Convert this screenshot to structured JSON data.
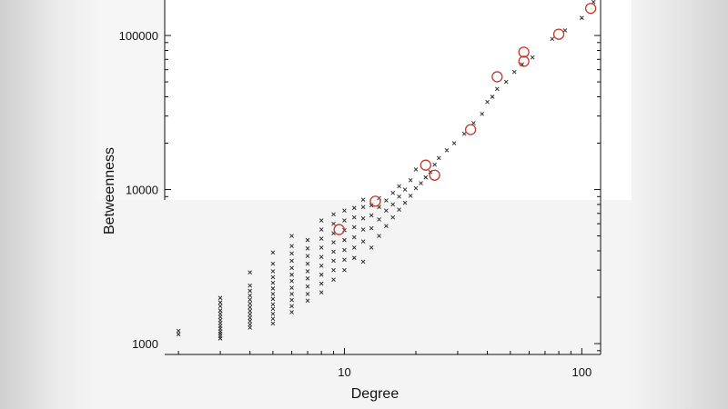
{
  "chart_data": {
    "type": "scatter",
    "title": "",
    "xlabel": "Degree",
    "ylabel": "Betweenness",
    "xscale": "log",
    "yscale": "log",
    "xlim": [
      1.75,
      120
    ],
    "ylim": [
      850,
      170000
    ],
    "x_ticks": [
      10,
      100
    ],
    "x_tick_labels": [
      "10",
      "100"
    ],
    "y_ticks": [
      1000,
      10000,
      100000
    ],
    "y_tick_labels": [
      "1000",
      "10000",
      "100000"
    ],
    "grid": false,
    "legend": "none",
    "series": [
      {
        "marker": "x",
        "color": "#222222",
        "points": [
          [
            2,
            1150
          ],
          [
            2,
            1210
          ],
          [
            3,
            1080
          ],
          [
            3,
            1120
          ],
          [
            3,
            1160
          ],
          [
            3,
            1200
          ],
          [
            3,
            1250
          ],
          [
            3,
            1300
          ],
          [
            3,
            1360
          ],
          [
            3,
            1420
          ],
          [
            3,
            1490
          ],
          [
            3,
            1560
          ],
          [
            3,
            1640
          ],
          [
            3,
            1750
          ],
          [
            3,
            1850
          ],
          [
            3,
            1980
          ],
          [
            4,
            1270
          ],
          [
            4,
            1330
          ],
          [
            4,
            1400
          ],
          [
            4,
            1470
          ],
          [
            4,
            1550
          ],
          [
            4,
            1630
          ],
          [
            4,
            1720
          ],
          [
            4,
            1820
          ],
          [
            4,
            1930
          ],
          [
            4,
            2050
          ],
          [
            4,
            2200
          ],
          [
            4,
            2380
          ],
          [
            4,
            2900
          ],
          [
            5,
            1350
          ],
          [
            5,
            1450
          ],
          [
            5,
            1560
          ],
          [
            5,
            1680
          ],
          [
            5,
            1800
          ],
          [
            5,
            1950
          ],
          [
            5,
            2100
          ],
          [
            5,
            2280
          ],
          [
            5,
            2480
          ],
          [
            5,
            2700
          ],
          [
            5,
            2950
          ],
          [
            5,
            3300
          ],
          [
            5,
            3900
          ],
          [
            6,
            1600
          ],
          [
            6,
            1750
          ],
          [
            6,
            1920
          ],
          [
            6,
            2100
          ],
          [
            6,
            2300
          ],
          [
            6,
            2550
          ],
          [
            6,
            2800
          ],
          [
            6,
            3100
          ],
          [
            6,
            3450
          ],
          [
            6,
            3850
          ],
          [
            6,
            4300
          ],
          [
            6,
            5000
          ],
          [
            7,
            1900
          ],
          [
            7,
            2100
          ],
          [
            7,
            2350
          ],
          [
            7,
            2650
          ],
          [
            7,
            2950
          ],
          [
            7,
            3300
          ],
          [
            7,
            3700
          ],
          [
            7,
            4150
          ],
          [
            7,
            4700
          ],
          [
            8,
            2150
          ],
          [
            8,
            2450
          ],
          [
            8,
            2800
          ],
          [
            8,
            3200
          ],
          [
            8,
            3650
          ],
          [
            8,
            4200
          ],
          [
            8,
            4800
          ],
          [
            8,
            5500
          ],
          [
            8,
            6300
          ],
          [
            9,
            2600
          ],
          [
            9,
            3000
          ],
          [
            9,
            3450
          ],
          [
            9,
            3950
          ],
          [
            9,
            4550
          ],
          [
            9,
            5200
          ],
          [
            9,
            6000
          ],
          [
            9,
            6900
          ],
          [
            10,
            3000
          ],
          [
            10,
            3500
          ],
          [
            10,
            4050
          ],
          [
            10,
            4700
          ],
          [
            10,
            5450
          ],
          [
            10,
            6300
          ],
          [
            10,
            7300
          ],
          [
            11,
            3600
          ],
          [
            11,
            4200
          ],
          [
            11,
            4900
          ],
          [
            11,
            5700
          ],
          [
            11,
            6600
          ],
          [
            11,
            7600
          ],
          [
            12,
            3400
          ],
          [
            12,
            4600
          ],
          [
            12,
            5500
          ],
          [
            12,
            6500
          ],
          [
            12,
            7700
          ],
          [
            12,
            8600
          ],
          [
            13,
            4200
          ],
          [
            13,
            5600
          ],
          [
            13,
            6800
          ],
          [
            13,
            7900
          ],
          [
            14,
            5000
          ],
          [
            14,
            6400
          ],
          [
            14,
            7700
          ],
          [
            14,
            8800
          ],
          [
            15,
            5800
          ],
          [
            15,
            7300
          ],
          [
            15,
            8500
          ],
          [
            16,
            6600
          ],
          [
            16,
            8000
          ],
          [
            16,
            9500
          ],
          [
            17,
            7400
          ],
          [
            17,
            9000
          ],
          [
            17,
            10500
          ],
          [
            18,
            8200
          ],
          [
            18,
            10000
          ],
          [
            19,
            9100
          ],
          [
            19,
            11500
          ],
          [
            20,
            10200
          ],
          [
            20,
            13500
          ],
          [
            21,
            11000
          ],
          [
            22,
            12000
          ],
          [
            23,
            13000
          ],
          [
            24,
            14500
          ],
          [
            25,
            16000
          ],
          [
            27,
            18000
          ],
          [
            29,
            20000
          ],
          [
            32,
            23000
          ],
          [
            35,
            27000
          ],
          [
            38,
            31000
          ],
          [
            40,
            37000
          ],
          [
            42,
            40000
          ],
          [
            44,
            45000
          ],
          [
            48,
            50000
          ],
          [
            52,
            58000
          ],
          [
            56,
            65000
          ],
          [
            62,
            72000
          ],
          [
            75,
            95000
          ],
          [
            85,
            108000
          ],
          [
            100,
            130000
          ],
          [
            112,
            165000
          ]
        ]
      },
      {
        "marker": "circle",
        "color": "#c0392b",
        "points": [
          [
            9.5,
            5500
          ],
          [
            13.5,
            8400
          ],
          [
            22,
            14400
          ],
          [
            24,
            12400
          ],
          [
            34,
            24500
          ],
          [
            44,
            54000
          ],
          [
            57,
            68000
          ],
          [
            57,
            78000
          ],
          [
            80,
            102000
          ],
          [
            109,
            150000
          ]
        ]
      }
    ]
  }
}
